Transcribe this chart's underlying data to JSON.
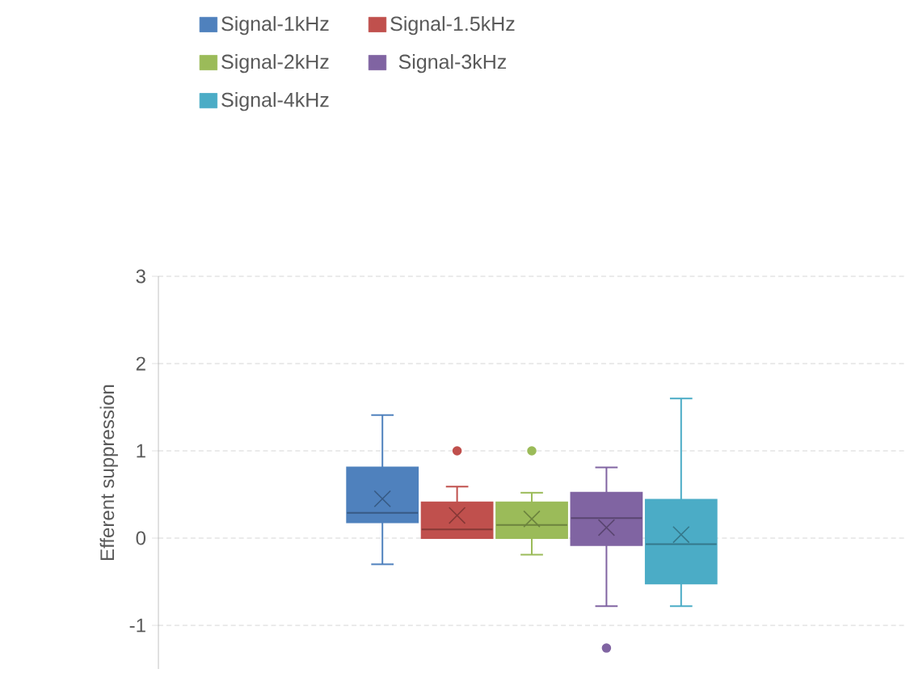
{
  "chart_data": {
    "type": "box",
    "categories": [
      null
    ],
    "ylabel": "Efferent suppression",
    "ylim": [
      -1.5,
      3
    ],
    "yticks": [
      -1,
      0,
      1,
      2,
      3
    ],
    "grid": "y",
    "legend": "top",
    "tick_labels": "y",
    "marker": "cross",
    "series": [
      {
        "name": "Signal-1kHz",
        "color": "#4f81bd",
        "boxes": [
          {
            "low": -0.3,
            "q1": 0.18,
            "median": 0.29,
            "q3": 0.81,
            "high": 1.41,
            "mean": 0.45
          }
        ]
      },
      {
        "name": "Signal-1.5kHz",
        "color": "#c0504d",
        "boxes": [
          {
            "low": 0.0,
            "q1": 0.0,
            "median": 0.1,
            "q3": 0.41,
            "high": 0.59,
            "mean": 0.26,
            "outliers": [
              1.0
            ]
          }
        ]
      },
      {
        "name": "Signal-2kHz",
        "color": "#9bbb59",
        "boxes": [
          {
            "low": -0.19,
            "q1": 0.0,
            "median": 0.15,
            "q3": 0.41,
            "high": 0.52,
            "mean": 0.22,
            "outliers": [
              1.0
            ]
          }
        ]
      },
      {
        "name": "Signal-3kHz",
        "color": "#8064a2",
        "boxes": [
          {
            "low": -0.78,
            "q1": -0.08,
            "median": 0.23,
            "q3": 0.52,
            "high": 0.81,
            "mean": 0.12,
            "outliers": [
              -1.26
            ]
          }
        ]
      },
      {
        "name": "Signal-4kHz",
        "color": "#4bacc6",
        "boxes": [
          {
            "low": -0.78,
            "q1": -0.52,
            "median": -0.07,
            "q3": 0.44,
            "high": 1.6,
            "mean": 0.04
          }
        ]
      }
    ]
  }
}
